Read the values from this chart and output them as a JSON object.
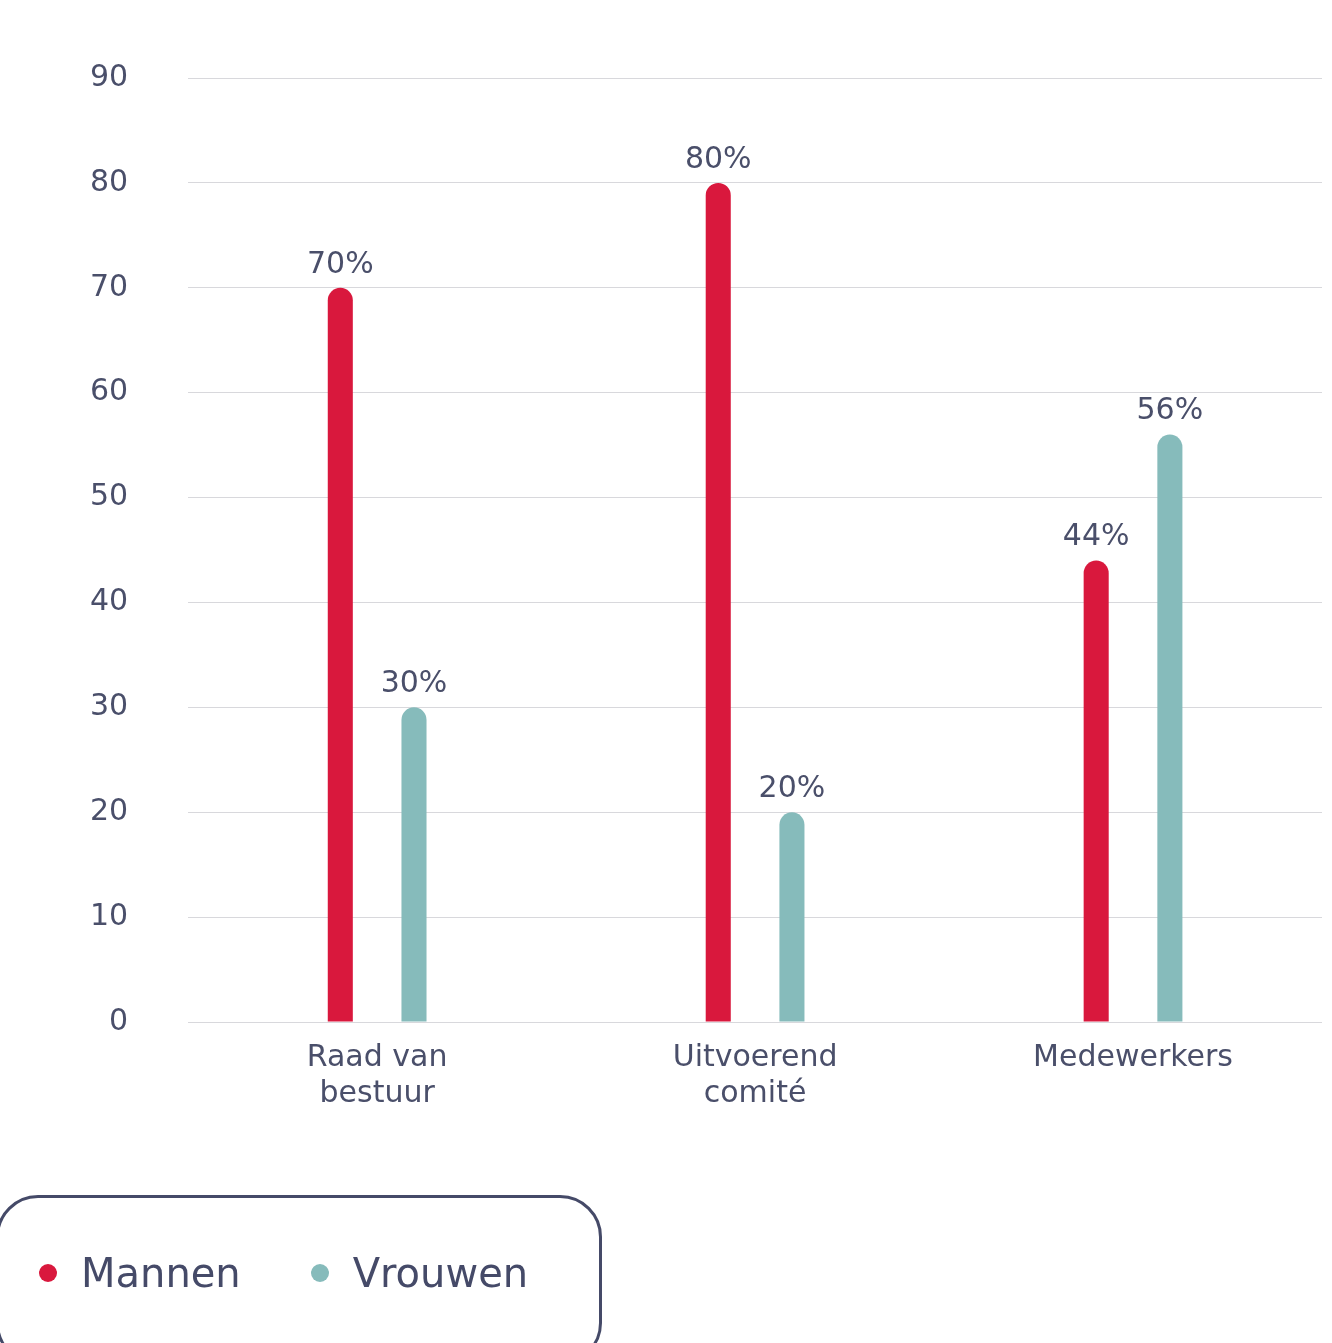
{
  "chart_data": {
    "type": "bar",
    "categories": [
      "Raad van bestuur",
      "Uitvoerend comité",
      "Medewerkers"
    ],
    "series": [
      {
        "name": "Mannen",
        "color": "#d9183d",
        "values": [
          70,
          80,
          44
        ],
        "value_labels": [
          "70%",
          "80%",
          "44%"
        ]
      },
      {
        "name": "Vrouwen",
        "color": "#86bbbb",
        "values": [
          30,
          20,
          56
        ],
        "value_labels": [
          "30%",
          "20%",
          "56%"
        ]
      }
    ],
    "ylim": [
      0,
      90
    ],
    "yticks": [
      0,
      10,
      20,
      30,
      40,
      50,
      60,
      70,
      80,
      90
    ],
    "grid": "y",
    "legend": "bottom left"
  }
}
